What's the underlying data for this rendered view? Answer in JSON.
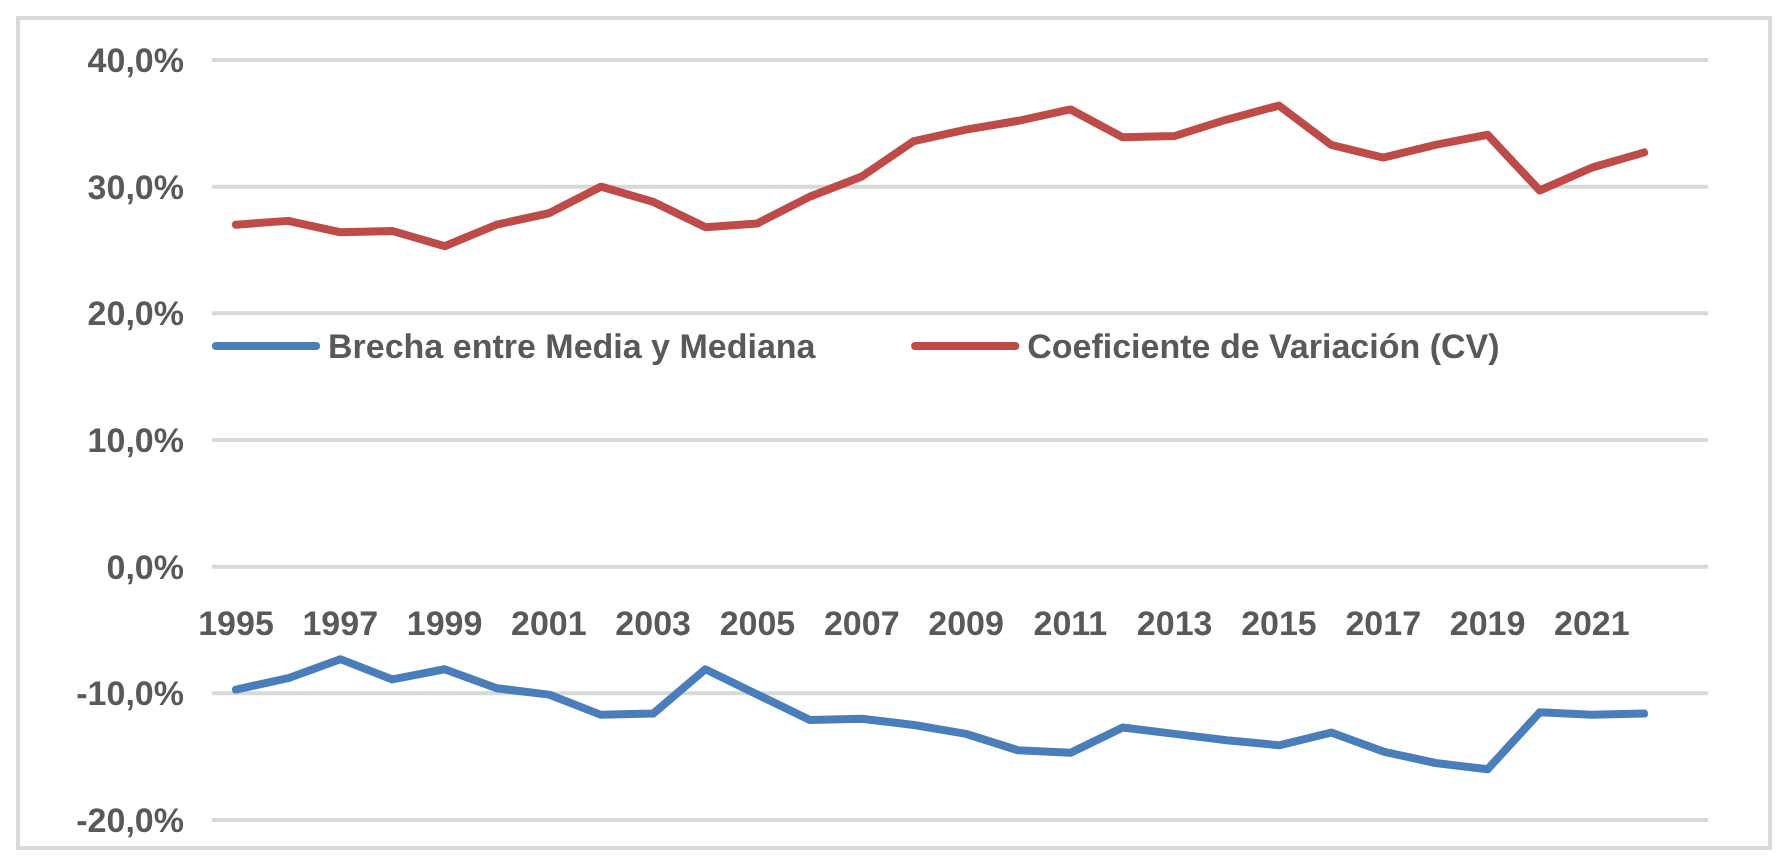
{
  "chart_data": {
    "type": "line",
    "categories": [
      "1995",
      null,
      "1997",
      null,
      "1999",
      null,
      "2001",
      null,
      "2003",
      null,
      "2005",
      null,
      "2007",
      null,
      "2009",
      null,
      "2011",
      null,
      "2013",
      null,
      "2015",
      null,
      "2017",
      null,
      "2019",
      null,
      "2021",
      null
    ],
    "series": [
      {
        "name": "Brecha entre Media y Mediana",
        "color": "#4a7ebb",
        "values": [
          -9.7,
          -8.8,
          -7.3,
          -8.9,
          -8.1,
          -9.6,
          -10.1,
          -11.7,
          -11.6,
          -8.1,
          -10.1,
          -12.1,
          -12.0,
          -12.5,
          -13.2,
          -14.5,
          -14.7,
          -12.7,
          -13.2,
          -13.7,
          -14.1,
          -13.1,
          -14.6,
          -15.5,
          -16.0,
          -11.5,
          -11.7,
          -11.6
        ]
      },
      {
        "name": "Coeficiente de Variación (CV)",
        "color": "#be4b48",
        "values": [
          27.0,
          27.3,
          26.4,
          26.5,
          25.3,
          27.0,
          27.9,
          30.0,
          28.8,
          26.8,
          27.1,
          29.2,
          30.8,
          33.6,
          34.5,
          35.2,
          36.1,
          33.9,
          34.0,
          35.3,
          36.4,
          33.3,
          32.3,
          33.3,
          34.1,
          29.7,
          31.5,
          32.7
        ]
      }
    ],
    "ylim": [
      -20,
      40
    ],
    "yticks": [
      {
        "value": -20,
        "label": "-20,0%"
      },
      {
        "value": -10,
        "label": "-10,0%"
      },
      {
        "value": 0,
        "label": "0,0%"
      },
      {
        "value": 10,
        "label": "10,0%"
      },
      {
        "value": 20,
        "label": "20,0%"
      },
      {
        "value": 30,
        "label": "30,0%"
      },
      {
        "value": 40,
        "label": "40,0%"
      }
    ],
    "grid": "y",
    "legend": "left",
    "marker": "none",
    "line_style": "solid"
  }
}
